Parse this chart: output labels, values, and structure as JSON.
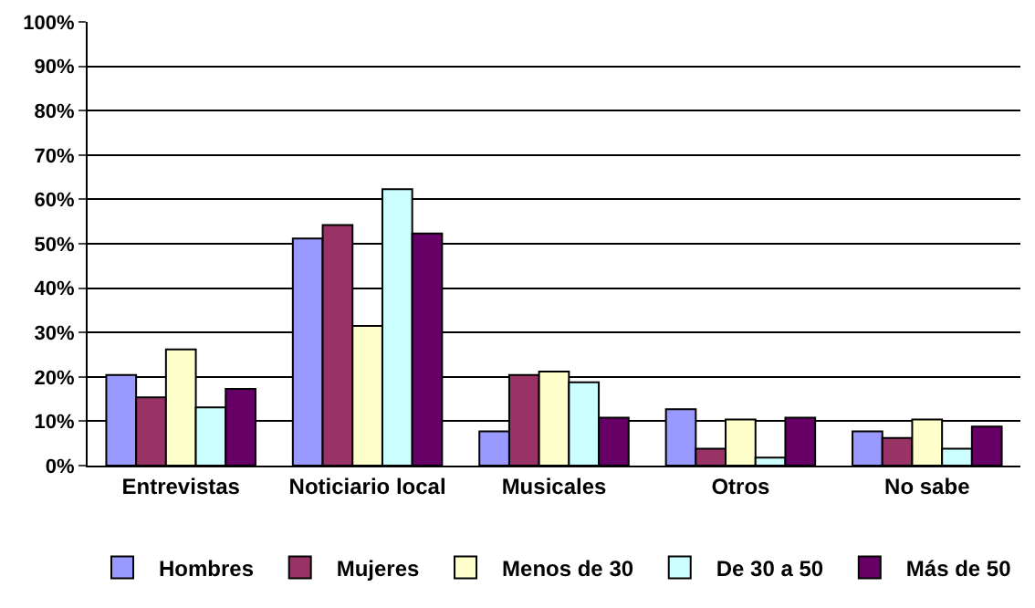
{
  "chart_data": {
    "type": "bar",
    "categories": [
      "Entrevistas",
      "Noticiario local",
      "Musicales",
      "Otros",
      "No sabe"
    ],
    "series": [
      {
        "name": "Hombres",
        "color": "#9999ff",
        "values": [
          20.4,
          51.2,
          7.7,
          12.7,
          7.7
        ]
      },
      {
        "name": "Mujeres",
        "color": "#993366",
        "values": [
          15.4,
          54.2,
          20.4,
          3.8,
          6.2
        ]
      },
      {
        "name": "Menos de 30",
        "color": "#ffffcc",
        "values": [
          26.2,
          31.5,
          21.2,
          10.4,
          10.4
        ]
      },
      {
        "name": "De 30 a 50",
        "color": "#ccffff",
        "values": [
          13.1,
          62.3,
          18.8,
          1.8,
          3.8
        ]
      },
      {
        "name": "Más de 50",
        "color": "#660066",
        "values": [
          17.3,
          52.3,
          10.8,
          10.8,
          8.8
        ]
      }
    ],
    "ylim": [
      0,
      100
    ],
    "yticks": [
      {
        "value": 0,
        "label": "0%"
      },
      {
        "value": 10,
        "label": "10%"
      },
      {
        "value": 20,
        "label": "20%"
      },
      {
        "value": 30,
        "label": "30%"
      },
      {
        "value": 40,
        "label": "40%"
      },
      {
        "value": 50,
        "label": "50%"
      },
      {
        "value": 60,
        "label": "60%"
      },
      {
        "value": 70,
        "label": "70%"
      },
      {
        "value": 80,
        "label": "80%"
      },
      {
        "value": 90,
        "label": "90%"
      },
      {
        "value": 100,
        "label": "100%"
      }
    ],
    "grid": "y",
    "legend": "bottom"
  }
}
